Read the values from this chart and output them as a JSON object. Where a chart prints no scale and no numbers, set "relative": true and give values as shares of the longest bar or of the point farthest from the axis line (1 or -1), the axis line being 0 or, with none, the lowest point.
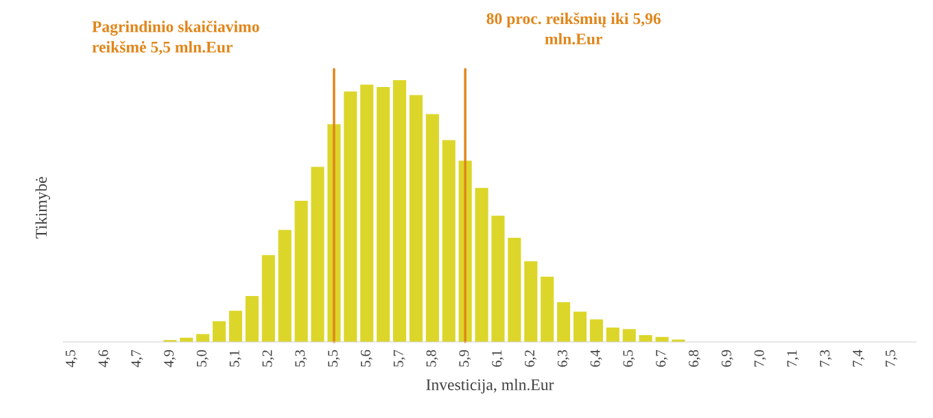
{
  "chart_data": {
    "type": "bar",
    "relative": true,
    "xlabel": "Investicija, mln.Eur",
    "ylabel": "Tikimybė",
    "color": "#dcd62a",
    "categories": [
      "4,5",
      null,
      "4,6",
      null,
      "4,7",
      null,
      "4,9",
      null,
      "5,0",
      null,
      "5,1",
      null,
      "5,2",
      null,
      "5,3",
      null,
      "5,5",
      null,
      "5,6",
      null,
      "5,7",
      null,
      "5,8",
      null,
      "5,9",
      null,
      "6,1",
      null,
      "6,2",
      null,
      "6,3",
      null,
      "6,4",
      null,
      "6,5",
      null,
      "6,7",
      null,
      "6,8",
      null,
      "6,9",
      null,
      "7,0",
      null,
      "7,1",
      null,
      "7,3",
      null,
      "7,4",
      null,
      "7,5",
      null
    ],
    "values": [
      0,
      0,
      0,
      0,
      0,
      0,
      0.007,
      0.016,
      0.03,
      0.079,
      0.119,
      0.175,
      0.332,
      0.428,
      0.539,
      0.669,
      0.832,
      0.957,
      0.983,
      0.974,
      1,
      0.943,
      0.87,
      0.771,
      0.692,
      0.588,
      0.482,
      0.398,
      0.308,
      0.249,
      0.152,
      0.116,
      0.086,
      0.055,
      0.049,
      0.026,
      0.019,
      0.009,
      0,
      0,
      0,
      0,
      0,
      0,
      0,
      0,
      0,
      0,
      0,
      0,
      0,
      0
    ],
    "ref_lines": [
      {
        "axis": "x",
        "value": "5,5",
        "label": "Pagrindinio skaičiavimo\nreikšmė 5,5 mln.Eur",
        "color": "#e0861a"
      },
      {
        "axis": "x",
        "value": "5,9",
        "label": "80 proc. reikšmių iki 5,96\nmln.Eur",
        "color": "#e0861a"
      }
    ],
    "grid": false,
    "legend": false
  }
}
